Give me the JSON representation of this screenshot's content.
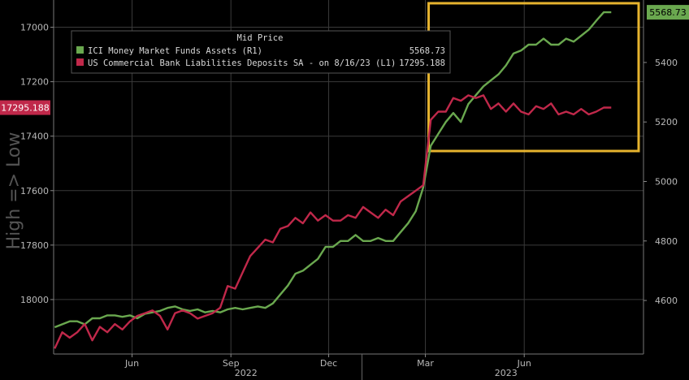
{
  "chart_data": {
    "type": "line",
    "title": "",
    "legend": {
      "header": "Mid Price",
      "placement": "top-left",
      "entries": [
        {
          "label": "ICI Money Market Funds Assets  (R1)",
          "value": "5568.73",
          "color": "#6aa84f"
        },
        {
          "label": "US Commercial Bank Liabilities Deposits SA -  on 8/16/23  (L1)",
          "value": "17295.188",
          "color": "#c0284a"
        }
      ]
    },
    "left_axis": {
      "label": "High => Low",
      "inverted": true,
      "range": [
        16900,
        18200
      ],
      "ticks": [
        "17000",
        "17200",
        "17400",
        "17600",
        "17800",
        "18000"
      ],
      "last_value": "17295.188"
    },
    "right_axis": {
      "range": [
        4420,
        5610
      ],
      "ticks": [
        "4600",
        "4800",
        "5000",
        "5200",
        "5400"
      ],
      "last_value": "5568.73"
    },
    "x_axis": {
      "range": [
        "2022-03-20",
        "2023-09-20"
      ],
      "month_ticks": [
        {
          "label": "Jun",
          "date": "2022-06-01"
        },
        {
          "label": "Sep",
          "date": "2022-09-01"
        },
        {
          "label": "Dec",
          "date": "2022-12-01"
        },
        {
          "label": "Mar",
          "date": "2023-03-01"
        },
        {
          "label": "Jun",
          "date": "2023-06-01"
        }
      ],
      "year_labels": [
        {
          "label": "2022",
          "date": "2022-09-15"
        },
        {
          "label": "2023",
          "date": "2023-05-15"
        }
      ],
      "year_divider": "2023-01-01"
    },
    "grid": true,
    "highlight_box": {
      "x_range": [
        "2023-03-01",
        "2023-09-20"
      ],
      "right_axis_range": [
        5500,
        5610
      ],
      "left_axis_range": [
        17400,
        16900
      ],
      "color": "#e6b32e"
    },
    "series": [
      {
        "name": "ICI Money Market Funds Assets  (R1)",
        "axis": "right",
        "color": "#6aa84f",
        "x": [
          "2022-03-21",
          "2022-03-28",
          "2022-04-04",
          "2022-04-11",
          "2022-04-18",
          "2022-04-25",
          "2022-05-02",
          "2022-05-09",
          "2022-05-16",
          "2022-05-23",
          "2022-05-30",
          "2022-06-06",
          "2022-06-13",
          "2022-06-20",
          "2022-06-27",
          "2022-07-04",
          "2022-07-11",
          "2022-07-18",
          "2022-07-25",
          "2022-08-01",
          "2022-08-08",
          "2022-08-15",
          "2022-08-22",
          "2022-08-29",
          "2022-09-05",
          "2022-09-12",
          "2022-09-19",
          "2022-09-26",
          "2022-10-03",
          "2022-10-10",
          "2022-10-17",
          "2022-10-24",
          "2022-10-31",
          "2022-11-07",
          "2022-11-14",
          "2022-11-21",
          "2022-11-28",
          "2022-12-05",
          "2022-12-12",
          "2022-12-19",
          "2022-12-26",
          "2023-01-02",
          "2023-01-09",
          "2023-01-16",
          "2023-01-23",
          "2023-01-30",
          "2023-02-06",
          "2023-02-13",
          "2023-02-20",
          "2023-02-27",
          "2023-03-06",
          "2023-03-13",
          "2023-03-20",
          "2023-03-27",
          "2023-04-03",
          "2023-04-10",
          "2023-04-17",
          "2023-04-24",
          "2023-05-01",
          "2023-05-08",
          "2023-05-15",
          "2023-05-22",
          "2023-05-29",
          "2023-06-05",
          "2023-06-12",
          "2023-06-19",
          "2023-06-26",
          "2023-07-03",
          "2023-07-10",
          "2023-07-17",
          "2023-07-24",
          "2023-07-31",
          "2023-08-07",
          "2023-08-14",
          "2023-08-21"
        ],
        "values": [
          4510,
          4520,
          4530,
          4530,
          4520,
          4540,
          4540,
          4550,
          4550,
          4545,
          4550,
          4540,
          4555,
          4560,
          4565,
          4575,
          4580,
          4570,
          4565,
          4570,
          4560,
          4565,
          4560,
          4570,
          4575,
          4570,
          4575,
          4580,
          4575,
          4590,
          4620,
          4650,
          4690,
          4700,
          4720,
          4740,
          4780,
          4780,
          4800,
          4800,
          4820,
          4800,
          4800,
          4810,
          4800,
          4800,
          4830,
          4860,
          4900,
          4980,
          5120,
          5160,
          5200,
          5230,
          5200,
          5260,
          5290,
          5320,
          5340,
          5360,
          5390,
          5430,
          5440,
          5460,
          5460,
          5480,
          5460,
          5460,
          5480,
          5470,
          5490,
          5510,
          5540,
          5568.73,
          5568.73
        ]
      },
      {
        "name": "US Commercial Bank Liabilities Deposits SA -  on 8/16/23  (L1)",
        "axis": "left",
        "color": "#c0284a",
        "x": [
          "2022-03-21",
          "2022-03-28",
          "2022-04-04",
          "2022-04-11",
          "2022-04-18",
          "2022-04-25",
          "2022-05-02",
          "2022-05-09",
          "2022-05-16",
          "2022-05-23",
          "2022-05-30",
          "2022-06-06",
          "2022-06-13",
          "2022-06-20",
          "2022-06-27",
          "2022-07-04",
          "2022-07-11",
          "2022-07-18",
          "2022-07-25",
          "2022-08-01",
          "2022-08-08",
          "2022-08-15",
          "2022-08-22",
          "2022-08-29",
          "2022-09-05",
          "2022-09-12",
          "2022-09-19",
          "2022-09-26",
          "2022-10-03",
          "2022-10-10",
          "2022-10-17",
          "2022-10-24",
          "2022-10-31",
          "2022-11-07",
          "2022-11-14",
          "2022-11-21",
          "2022-11-28",
          "2022-12-05",
          "2022-12-12",
          "2022-12-19",
          "2022-12-26",
          "2023-01-02",
          "2023-01-09",
          "2023-01-16",
          "2023-01-23",
          "2023-01-30",
          "2023-02-06",
          "2023-02-13",
          "2023-02-20",
          "2023-02-27",
          "2023-03-06",
          "2023-03-13",
          "2023-03-20",
          "2023-03-27",
          "2023-04-03",
          "2023-04-10",
          "2023-04-17",
          "2023-04-24",
          "2023-05-01",
          "2023-05-08",
          "2023-05-15",
          "2023-05-22",
          "2023-05-29",
          "2023-06-05",
          "2023-06-12",
          "2023-06-19",
          "2023-06-26",
          "2023-07-03",
          "2023-07-10",
          "2023-07-17",
          "2023-07-24",
          "2023-07-31",
          "2023-08-07",
          "2023-08-14",
          "2023-08-21"
        ],
        "values": [
          18180,
          18120,
          18140,
          18120,
          18090,
          18150,
          18100,
          18120,
          18090,
          18110,
          18080,
          18060,
          18050,
          18040,
          18060,
          18110,
          18050,
          18040,
          18050,
          18070,
          18060,
          18050,
          18030,
          17950,
          17960,
          17900,
          17840,
          17810,
          17780,
          17790,
          17740,
          17730,
          17700,
          17720,
          17680,
          17710,
          17690,
          17710,
          17710,
          17690,
          17700,
          17660,
          17680,
          17700,
          17670,
          17690,
          17640,
          17620,
          17600,
          17580,
          17340,
          17310,
          17310,
          17260,
          17270,
          17250,
          17260,
          17250,
          17300,
          17280,
          17310,
          17280,
          17310,
          17320,
          17290,
          17300,
          17280,
          17320,
          17310,
          17320,
          17300,
          17320,
          17310,
          17295.188,
          17295.188
        ]
      }
    ]
  }
}
